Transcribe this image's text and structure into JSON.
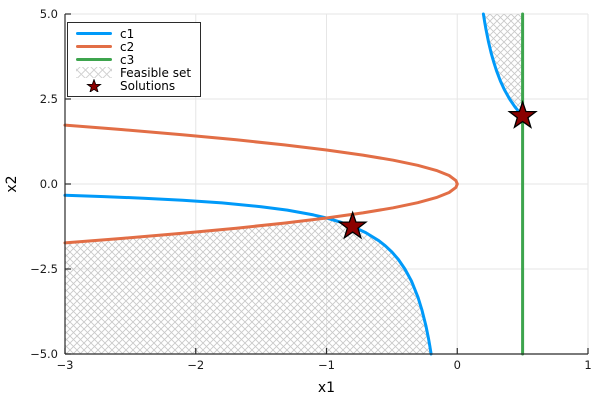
{
  "chart_data": {
    "type": "line",
    "title": "",
    "xlabel": "x1",
    "ylabel": "x2",
    "xlim": [
      -3,
      1
    ],
    "ylim": [
      -5,
      5
    ],
    "grid": true,
    "grid_color": "#e6e6e6",
    "spine_color": "#2b2b2b",
    "xticks": {
      "values": [
        -3,
        -2,
        -1,
        0,
        1
      ],
      "labels": [
        "−3",
        "−2",
        "−1",
        "0",
        "1"
      ]
    },
    "yticks": {
      "values": [
        -5,
        -2.5,
        0,
        2.5,
        5
      ],
      "labels": [
        "−5.0",
        "−2.5",
        "0.0",
        "2.5",
        "5.0"
      ]
    },
    "legend_position": "top-left",
    "series": [
      {
        "name": "c1",
        "equation": "x2 = 1/x1",
        "color": "#009af9",
        "width": 3,
        "branches": [
          [
            [
              -3,
              -0.333
            ],
            [
              -2.7,
              -0.37
            ],
            [
              -2.4,
              -0.417
            ],
            [
              -2.1,
              -0.476
            ],
            [
              -1.8,
              -0.556
            ],
            [
              -1.5,
              -0.667
            ],
            [
              -1.3,
              -0.769
            ],
            [
              -1.1,
              -0.909
            ],
            [
              -1,
              -1
            ],
            [
              -0.9,
              -1.111
            ],
            [
              -0.8,
              -1.25
            ],
            [
              -0.7,
              -1.429
            ],
            [
              -0.6,
              -1.667
            ],
            [
              -0.55,
              -1.818
            ],
            [
              -0.5,
              -2
            ],
            [
              -0.45,
              -2.222
            ],
            [
              -0.4,
              -2.5
            ],
            [
              -0.35,
              -2.857
            ],
            [
              -0.3,
              -3.333
            ],
            [
              -0.27,
              -3.704
            ],
            [
              -0.24,
              -4.167
            ],
            [
              -0.22,
              -4.545
            ],
            [
              -0.21,
              -4.762
            ],
            [
              -0.2,
              -5
            ]
          ],
          [
            [
              0.2,
              5
            ],
            [
              0.21,
              4.762
            ],
            [
              0.22,
              4.545
            ],
            [
              0.24,
              4.167
            ],
            [
              0.26,
              3.846
            ],
            [
              0.28,
              3.571
            ],
            [
              0.3,
              3.333
            ],
            [
              0.33,
              3.03
            ],
            [
              0.36,
              2.778
            ],
            [
              0.4,
              2.5
            ],
            [
              0.44,
              2.273
            ],
            [
              0.48,
              2.083
            ],
            [
              0.5,
              2
            ]
          ]
        ]
      },
      {
        "name": "c2",
        "equation": "x1 = -x2^2",
        "color": "#e26e46",
        "width": 3,
        "branches": [
          [
            [
              -3,
              -1.732
            ],
            [
              -2.56,
              -1.6
            ],
            [
              -2.1025,
              -1.45
            ],
            [
              -1.69,
              -1.3
            ],
            [
              -1.3225,
              -1.15
            ],
            [
              -1,
              -1
            ],
            [
              -0.7225,
              -0.85
            ],
            [
              -0.49,
              -0.7
            ],
            [
              -0.3025,
              -0.55
            ],
            [
              -0.16,
              -0.4
            ],
            [
              -0.0625,
              -0.25
            ],
            [
              -0.01,
              -0.1
            ],
            [
              0,
              0
            ],
            [
              -0.01,
              0.1
            ],
            [
              -0.0625,
              0.25
            ],
            [
              -0.16,
              0.4
            ],
            [
              -0.3025,
              0.55
            ],
            [
              -0.49,
              0.7
            ],
            [
              -0.7225,
              0.85
            ],
            [
              -1,
              1
            ],
            [
              -1.3225,
              1.15
            ],
            [
              -1.69,
              1.3
            ],
            [
              -2.1025,
              1.45
            ],
            [
              -2.56,
              1.6
            ],
            [
              -3,
              1.732
            ]
          ]
        ]
      },
      {
        "name": "c3",
        "equation": "x1 = 0.5",
        "color": "#3da44d",
        "width": 3,
        "branches": [
          [
            [
              0.5,
              -5
            ],
            [
              0.5,
              5
            ]
          ]
        ]
      }
    ],
    "feasible_set": {
      "label": "Feasible set",
      "pattern": "crosshatch",
      "pattern_color": "#c9c9c9",
      "regions": [
        [
          [
            -3,
            -5
          ],
          [
            -3,
            -1.732
          ],
          [
            -2.8,
            -1.673
          ],
          [
            -2.6,
            -1.612
          ],
          [
            -2.4,
            -1.549
          ],
          [
            -2.2,
            -1.483
          ],
          [
            -2,
            -1.414
          ],
          [
            -1.8,
            -1.342
          ],
          [
            -1.6,
            -1.265
          ],
          [
            -1.4,
            -1.183
          ],
          [
            -1.2,
            -1.095
          ],
          [
            -1,
            -1
          ],
          [
            -0.9,
            -1.111
          ],
          [
            -0.8,
            -1.25
          ],
          [
            -0.7,
            -1.429
          ],
          [
            -0.6,
            -1.667
          ],
          [
            -0.55,
            -1.818
          ],
          [
            -0.5,
            -2
          ],
          [
            -0.45,
            -2.222
          ],
          [
            -0.4,
            -2.5
          ],
          [
            -0.35,
            -2.857
          ],
          [
            -0.3,
            -3.333
          ],
          [
            -0.27,
            -3.704
          ],
          [
            -0.24,
            -4.167
          ],
          [
            -0.22,
            -4.545
          ],
          [
            -0.21,
            -4.762
          ],
          [
            -0.2,
            -5
          ]
        ],
        [
          [
            0.2,
            5
          ],
          [
            0.21,
            4.762
          ],
          [
            0.22,
            4.545
          ],
          [
            0.24,
            4.167
          ],
          [
            0.26,
            3.846
          ],
          [
            0.28,
            3.571
          ],
          [
            0.3,
            3.333
          ],
          [
            0.33,
            3.03
          ],
          [
            0.36,
            2.778
          ],
          [
            0.4,
            2.5
          ],
          [
            0.44,
            2.273
          ],
          [
            0.48,
            2.083
          ],
          [
            0.5,
            2
          ],
          [
            0.5,
            5
          ]
        ]
      ]
    },
    "solutions": {
      "label": "Solutions",
      "marker": "star5",
      "fill_color": "#8b0000",
      "edge_color": "#000000",
      "points": [
        [
          -0.8,
          -1.25
        ],
        [
          0.5,
          2
        ]
      ]
    }
  }
}
